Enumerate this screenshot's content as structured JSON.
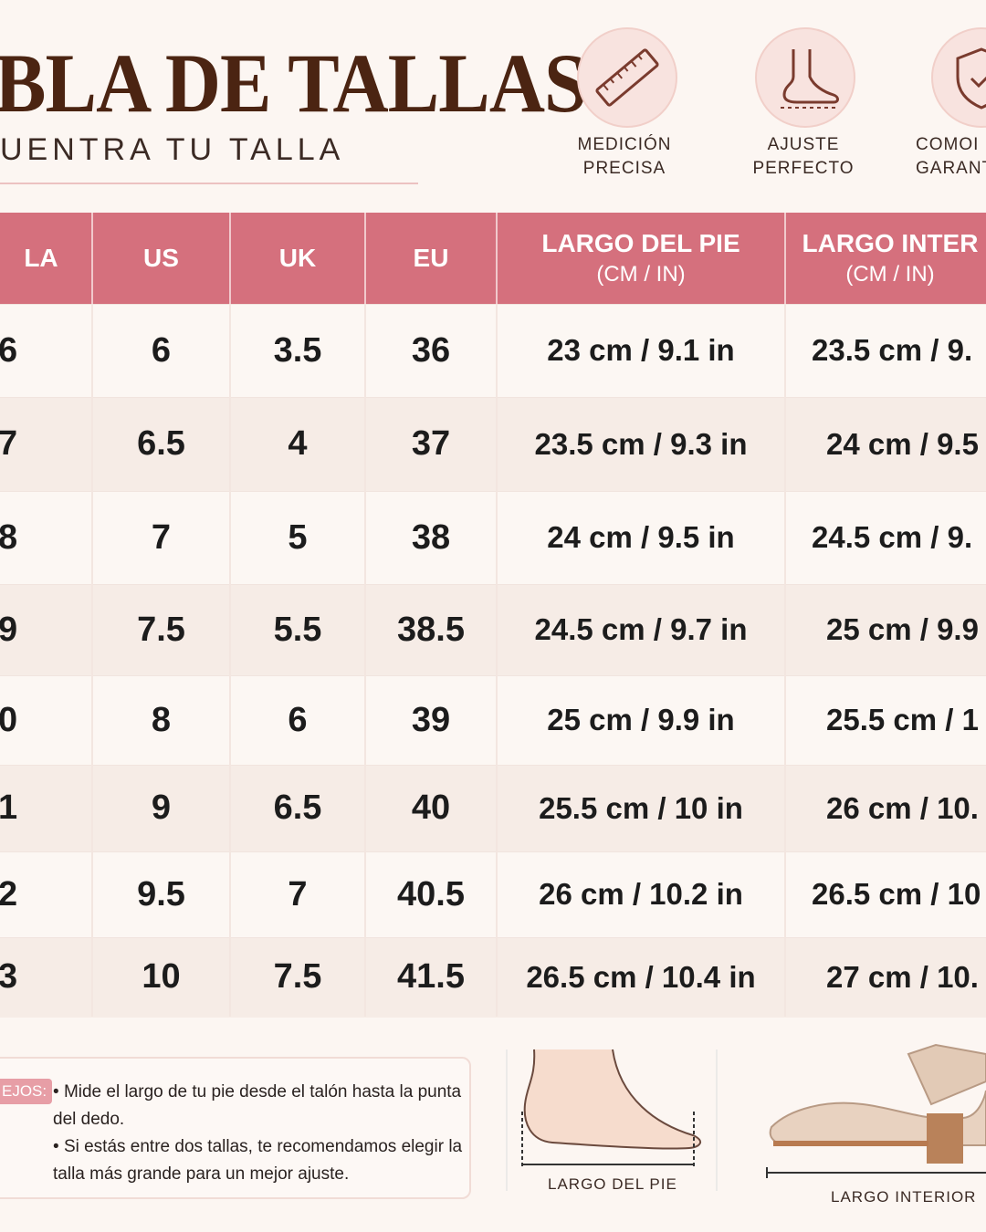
{
  "header": {
    "title": "BLA DE TALLAS",
    "subtitle": "UENTRA TU TALLA"
  },
  "features": [
    {
      "line1": "MEDICIÓN",
      "line2": "PRECISA"
    },
    {
      "line1": "AJUSTE",
      "line2": "PERFECTO"
    },
    {
      "line1": "COMOI",
      "line2": "GARANT"
    }
  ],
  "table": {
    "header": [
      [
        "LA"
      ],
      [
        "US"
      ],
      [
        "UK"
      ],
      [
        "EU"
      ],
      [
        "LARGO DEL PIE",
        "(CM / IN)"
      ],
      [
        "LARGO INTER",
        "(CM / IN)"
      ]
    ],
    "rows": [
      [
        "6",
        "6",
        "3.5",
        "36",
        "23 cm / 9.1 in",
        "23.5 cm / 9."
      ],
      [
        "7",
        "6.5",
        "4",
        "37",
        "23.5 cm / 9.3 in",
        "24 cm / 9.5"
      ],
      [
        "8",
        "7",
        "5",
        "38",
        "24 cm / 9.5 in",
        "24.5 cm / 9."
      ],
      [
        "9",
        "7.5",
        "5.5",
        "38.5",
        "24.5 cm / 9.7 in",
        "25 cm / 9.9"
      ],
      [
        "0",
        "8",
        "6",
        "39",
        "25 cm / 9.9 in",
        "25.5 cm / 1"
      ],
      [
        "1",
        "9",
        "6.5",
        "40",
        "25.5 cm / 10 in",
        "26 cm / 10."
      ],
      [
        "2",
        "9.5",
        "7",
        "40.5",
        "26 cm / 10.2 in",
        "26.5 cm / 10"
      ],
      [
        "3",
        "10",
        "7.5",
        "41.5",
        "26.5 cm / 10.4 in",
        "27 cm / 10."
      ]
    ]
  },
  "tips": {
    "label": "EJOS:",
    "items": [
      "Mide el largo de tu pie desde el talón hasta la punta del dedo.",
      "Si estás entre dos tallas, te recomendamos elegir la talla más grande para un mejor ajuste."
    ]
  },
  "diagrams": [
    "LARGO DEL PIE",
    "LARGO INTERIOR"
  ]
}
